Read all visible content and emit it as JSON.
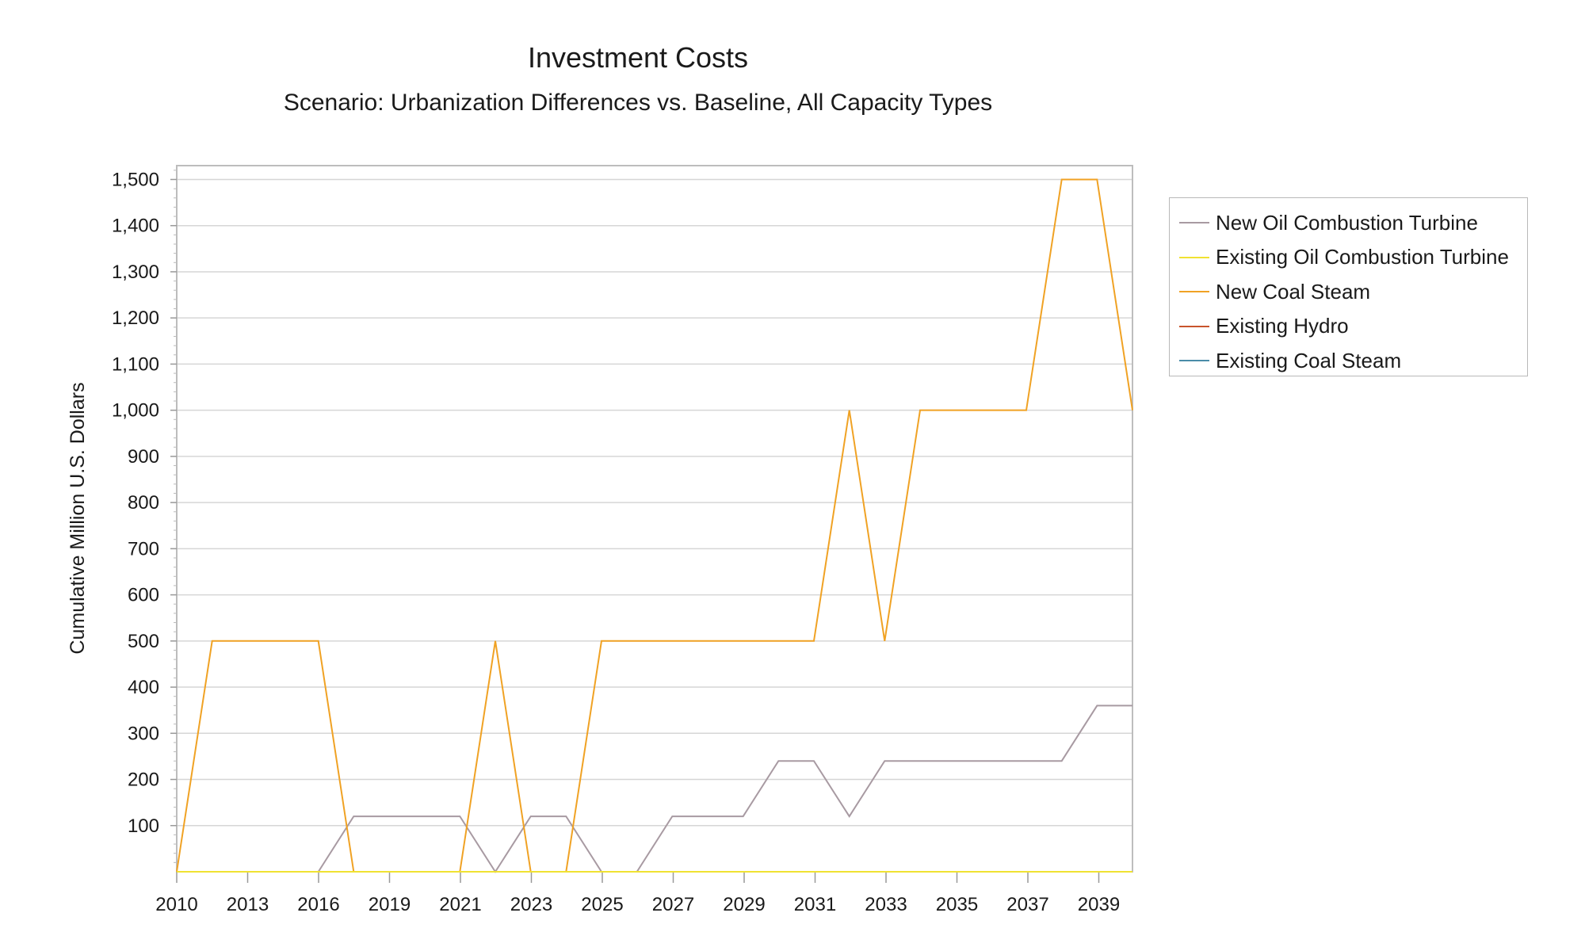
{
  "chart_data": {
    "type": "line",
    "title": "Investment Costs",
    "subtitle": "Scenario: Urbanization Differences vs. Baseline, All Capacity Types",
    "xlabel": "",
    "ylabel": "Cumulative Million U.S. Dollars",
    "xlim": [
      2010,
      2037
    ],
    "ylim": [
      0,
      1530
    ],
    "x_ticks": [
      "2010",
      "2013",
      "2016",
      "2019",
      "2021",
      "2023",
      "2025",
      "2027",
      "2029",
      "2031",
      "2033",
      "2035",
      "2037",
      "2039"
    ],
    "y_ticks": [
      "100",
      "200",
      "300",
      "400",
      "500",
      "600",
      "700",
      "800",
      "900",
      "1,000",
      "1,100",
      "1,200",
      "1,300",
      "1,400",
      "1,500"
    ],
    "y_tick_values": [
      100,
      200,
      300,
      400,
      500,
      600,
      700,
      800,
      900,
      1000,
      1100,
      1200,
      1300,
      1400,
      1500
    ],
    "grid": true,
    "legend_position": "right",
    "x": [
      2010,
      2011,
      2012,
      2013,
      2014,
      2015,
      2016,
      2017,
      2018,
      2019,
      2020,
      2021,
      2022,
      2023,
      2024,
      2025,
      2026,
      2027,
      2028,
      2029,
      2030,
      2031,
      2032,
      2033,
      2034,
      2035,
      2036,
      2037
    ],
    "series": [
      {
        "name": "New Oil Combustion Turbine",
        "color": "#a89aa2",
        "values": [
          0,
          0,
          0,
          0,
          0,
          120,
          120,
          120,
          120,
          0,
          120,
          120,
          0,
          0,
          120,
          120,
          120,
          240,
          240,
          120,
          240,
          240,
          240,
          240,
          240,
          240,
          360,
          360
        ]
      },
      {
        "name": "Existing Oil Combustion Turbine",
        "color": "#f0e232",
        "values": [
          0,
          0,
          0,
          0,
          0,
          0,
          0,
          0,
          0,
          0,
          0,
          0,
          0,
          0,
          0,
          0,
          0,
          0,
          0,
          0,
          0,
          0,
          0,
          0,
          0,
          0,
          0,
          0
        ]
      },
      {
        "name": "New Coal Steam",
        "color": "#f0a224",
        "values": [
          0,
          500,
          500,
          500,
          500,
          0,
          0,
          0,
          0,
          500,
          0,
          0,
          500,
          500,
          500,
          500,
          500,
          500,
          500,
          1000,
          500,
          1000,
          1000,
          1000,
          1000,
          1500,
          1500,
          1000
        ]
      },
      {
        "name": "Existing Hydro",
        "color": "#c8542c",
        "values": [
          0,
          0,
          0,
          0,
          0,
          0,
          0,
          0,
          0,
          0,
          0,
          0,
          0,
          0,
          0,
          0,
          0,
          0,
          0,
          0,
          0,
          0,
          0,
          0,
          0,
          0,
          0,
          0
        ]
      },
      {
        "name": "Existing Coal Steam",
        "color": "#4a8ca8",
        "values": [
          0,
          0,
          0,
          0,
          0,
          0,
          0,
          0,
          0,
          0,
          0,
          0,
          0,
          0,
          0,
          0,
          0,
          0,
          0,
          0,
          0,
          0,
          0,
          0,
          0,
          0,
          0,
          0
        ]
      }
    ]
  }
}
